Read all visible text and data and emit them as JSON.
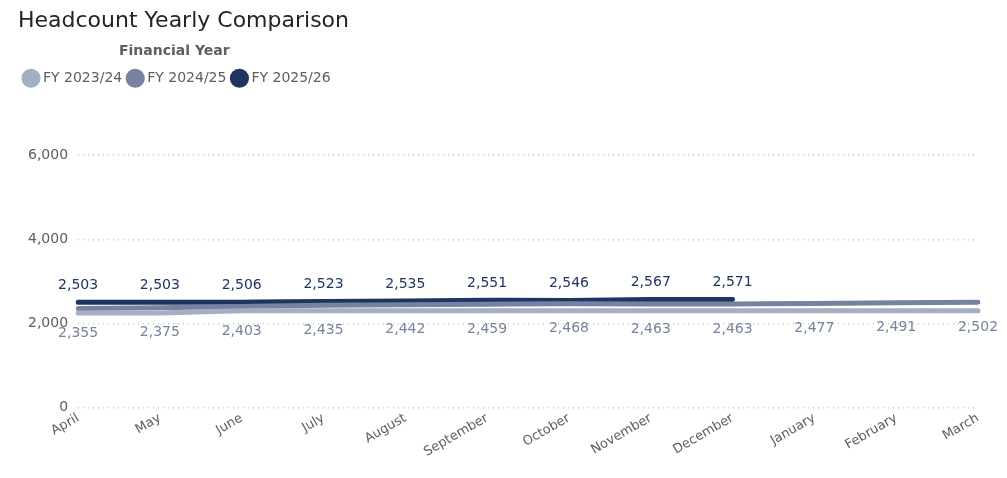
{
  "chart_data": {
    "type": "line",
    "title": "Headcount Yearly Comparison",
    "legend_title": "Financial Year",
    "categories": [
      "April",
      "May",
      "June",
      "July",
      "August",
      "September",
      "October",
      "November",
      "December",
      "January",
      "February",
      "March"
    ],
    "series": [
      {
        "name": "FY 2023/24",
        "color": "#a4aec4",
        "values": [
          2250,
          2250,
          2300,
          2300,
          2300,
          2300,
          2300,
          2300,
          2300,
          2300,
          2300,
          2300
        ]
      },
      {
        "name": "FY 2024/25",
        "color": "#76829e",
        "values": [
          2355,
          2375,
          2403,
          2435,
          2442,
          2459,
          2468,
          2463,
          2463,
          2477,
          2491,
          2502
        ],
        "value_labels": [
          "2,355",
          "2,375",
          "2,403",
          "2,435",
          "2,442",
          "2,459",
          "2,468",
          "2,463",
          "2,463",
          "2,477",
          "2,491",
          "2,502"
        ]
      },
      {
        "name": "FY 2025/26",
        "color": "#1f3461",
        "values": [
          2503,
          2503,
          2506,
          2523,
          2535,
          2551,
          2546,
          2567,
          2571,
          null,
          null,
          null
        ],
        "value_labels": [
          "2,503",
          "2,503",
          "2,506",
          "2,523",
          "2,535",
          "2,551",
          "2,546",
          "2,567",
          "2,571",
          null,
          null,
          null
        ]
      }
    ],
    "ylim": [
      0,
      6000
    ],
    "yticks": [
      0,
      {
        "value": 2000,
        "label": "2,000"
      },
      {
        "value": 4000,
        "label": "4,000"
      },
      {
        "value": 6000,
        "label": "6,000"
      }
    ],
    "grid": "y",
    "legend": "top left",
    "marker": "none",
    "line_style": "solid"
  }
}
